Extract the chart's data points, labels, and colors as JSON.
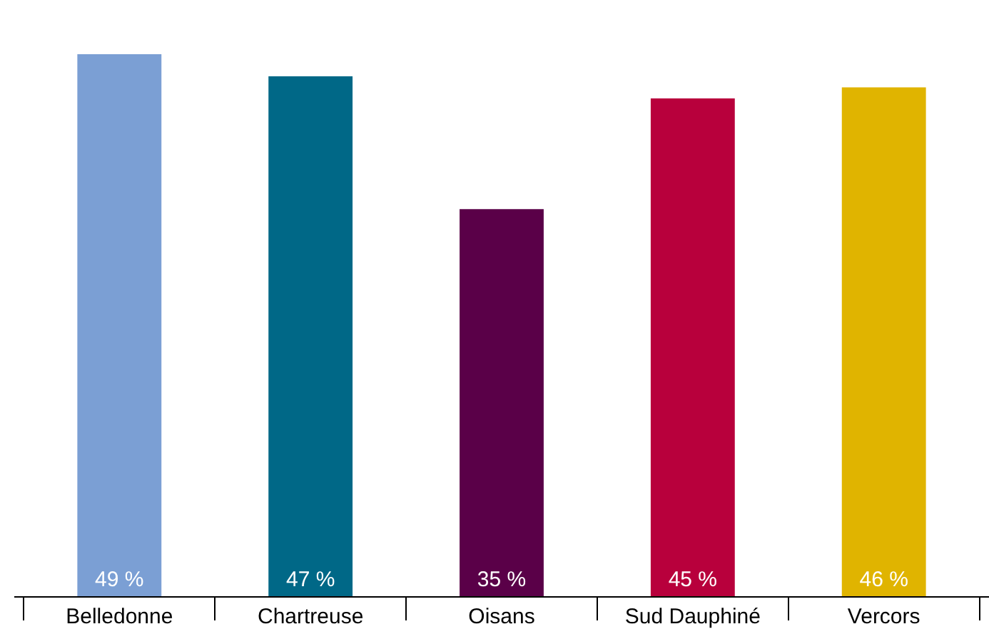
{
  "chart_data": {
    "type": "bar",
    "categories": [
      "Belledonne",
      "Chartreuse",
      "Oisans",
      "Sud Dauphiné",
      "Vercors"
    ],
    "values": [
      49,
      47,
      35,
      45,
      46
    ],
    "colors": [
      "#7b9fd4",
      "#006887",
      "#5a0048",
      "#b8003c",
      "#e0b400"
    ],
    "value_labels": [
      "49 %",
      "47 %",
      "35 %",
      "45 %",
      "46 %"
    ],
    "legend": false
  }
}
